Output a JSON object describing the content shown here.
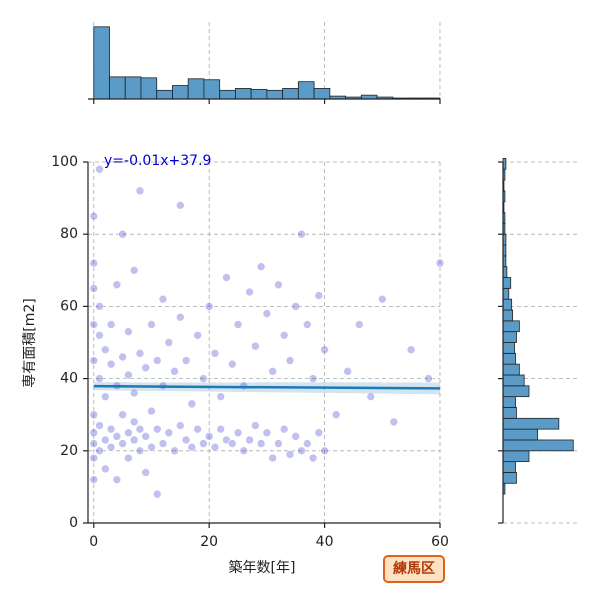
{
  "chart_data": {
    "type": "scatter",
    "x_label": "築年数[年]",
    "y_label": "専有面積[m2]",
    "badge": "練馬区",
    "xlim": [
      -1,
      60
    ],
    "ylim": [
      0,
      100
    ],
    "xticks": [
      0,
      20,
      40,
      60
    ],
    "yticks": [
      0,
      20,
      40,
      60,
      80,
      100
    ],
    "grid": true,
    "color": "#3333cc",
    "x": [
      0,
      0,
      0,
      0,
      0,
      0,
      0,
      0,
      0,
      0,
      1,
      1,
      1,
      1,
      1,
      1,
      2,
      2,
      2,
      2,
      3,
      3,
      3,
      3,
      4,
      4,
      4,
      4,
      5,
      5,
      5,
      5,
      6,
      6,
      6,
      6,
      7,
      7,
      7,
      7,
      8,
      8,
      8,
      8,
      9,
      9,
      9,
      10,
      10,
      10,
      11,
      11,
      11,
      12,
      12,
      12,
      13,
      13,
      14,
      14,
      15,
      15,
      15,
      16,
      16,
      17,
      17,
      18,
      18,
      19,
      19,
      20,
      20,
      21,
      21,
      22,
      22,
      23,
      23,
      24,
      24,
      25,
      25,
      26,
      26,
      27,
      27,
      28,
      28,
      29,
      29,
      30,
      30,
      31,
      31,
      32,
      32,
      33,
      33,
      34,
      34,
      35,
      35,
      36,
      36,
      37,
      37,
      38,
      38,
      39,
      39,
      40,
      40,
      42,
      44,
      46,
      48,
      50,
      52,
      55,
      58,
      60
    ],
    "y": [
      12,
      18,
      22,
      25,
      30,
      45,
      55,
      65,
      72,
      85,
      20,
      27,
      40,
      52,
      60,
      98,
      15,
      23,
      35,
      48,
      21,
      26,
      44,
      55,
      12,
      24,
      38,
      66,
      22,
      30,
      46,
      80,
      18,
      25,
      41,
      53,
      23,
      28,
      36,
      70,
      20,
      26,
      47,
      92,
      14,
      24,
      43,
      21,
      31,
      55,
      8,
      26,
      45,
      22,
      38,
      62,
      25,
      50,
      20,
      42,
      27,
      57,
      88,
      23,
      45,
      21,
      33,
      26,
      52,
      22,
      40,
      24,
      60,
      21,
      47,
      26,
      35,
      23,
      68,
      22,
      44,
      25,
      55,
      20,
      38,
      23,
      64,
      27,
      49,
      22,
      71,
      25,
      58,
      18,
      42,
      22,
      66,
      26,
      52,
      19,
      45,
      24,
      60,
      20,
      80,
      22,
      55,
      18,
      40,
      25,
      63,
      20,
      48,
      30,
      42,
      55,
      35,
      62,
      28,
      48,
      40,
      72
    ],
    "regression": {
      "slope": -0.01,
      "intercept": 37.9,
      "label": "y=-0.01x+37.9",
      "color": "#1f77b4"
    },
    "x_hist": {
      "bins": [
        0,
        2.73,
        5.45,
        8.18,
        10.91,
        13.64,
        16.36,
        19.09,
        21.82,
        24.55,
        27.27,
        30,
        32.73,
        35.45,
        38.18,
        40.91,
        43.64,
        46.36,
        49.09,
        51.82,
        54.55,
        57.27,
        60
      ],
      "counts": [
        75,
        23,
        23,
        22,
        9,
        14,
        21,
        20,
        9,
        11,
        10,
        9,
        11,
        18,
        11,
        3,
        2,
        4,
        2,
        1,
        1,
        1
      ],
      "ylim": [
        0,
        80
      ],
      "color": "#5b9bc8"
    },
    "y_hist": {
      "bins": [
        8,
        11,
        14,
        17,
        20,
        23,
        26,
        29,
        32,
        35,
        38,
        41,
        44,
        47,
        50,
        53,
        56,
        59,
        62,
        65,
        68,
        71,
        74,
        77,
        80,
        83,
        86,
        89,
        92,
        95,
        98,
        101
      ],
      "counts": [
        2,
        14,
        13,
        27,
        73,
        36,
        58,
        14,
        13,
        27,
        22,
        17,
        13,
        12,
        14,
        17,
        10,
        9,
        6,
        8,
        4,
        3,
        3,
        3,
        2,
        2,
        1,
        2,
        1,
        2,
        3
      ],
      "xlim": [
        0,
        80
      ],
      "color": "#5b9bc8"
    }
  }
}
